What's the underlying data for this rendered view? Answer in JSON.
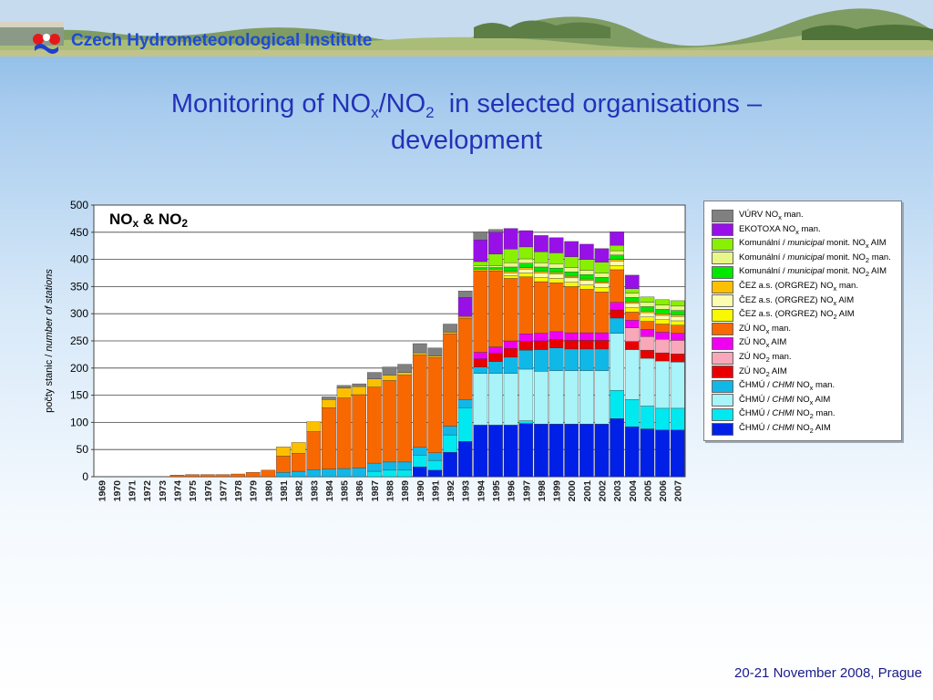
{
  "header": {
    "institute": "Czech Hydrometeorological Institute"
  },
  "slide": {
    "title_pre": "Monitoring of NO",
    "title_sub1": "x",
    "title_mid": "/NO",
    "title_sub2": "2",
    "title_post": "  in selected organisations –",
    "title_line2": "development"
  },
  "footer": {
    "text": "20-21 November 2008, Prague"
  },
  "chart_data": {
    "type": "bar",
    "stacked": true,
    "title": "NOx & NO2",
    "ylabel": "počty stanic / number of stations",
    "ylim": [
      0,
      500
    ],
    "yticks": [
      0,
      50,
      100,
      150,
      200,
      250,
      300,
      350,
      400,
      450,
      500
    ],
    "grid": true,
    "legend_position": "right",
    "categories": [
      "1969",
      "1970",
      "1971",
      "1972",
      "1973",
      "1974",
      "1975",
      "1976",
      "1977",
      "1978",
      "1979",
      "1980",
      "1981",
      "1982",
      "1983",
      "1984",
      "1985",
      "1986",
      "1987",
      "1988",
      "1989",
      "1990",
      "1991",
      "1992",
      "1993",
      "1994",
      "1995",
      "1996",
      "1997",
      "1998",
      "1999",
      "2000",
      "2001",
      "2002",
      "2003",
      "2004",
      "2005",
      "2006",
      "2007"
    ],
    "series": [
      {
        "name": "ČHMÚ / CHMI NO2 AIM",
        "color": "#0020e8",
        "values": [
          0,
          0,
          0,
          0,
          0,
          0,
          0,
          0,
          0,
          0,
          0,
          0,
          0,
          0,
          0,
          0,
          0,
          0,
          0,
          0,
          0,
          18,
          12,
          45,
          65,
          95,
          95,
          95,
          98,
          97,
          97,
          97,
          97,
          97,
          107,
          92,
          88,
          86,
          86
        ]
      },
      {
        "name": "ČHMÚ / CHMI NO2 man.",
        "color": "#00e8f0",
        "values": [
          0,
          0,
          0,
          0,
          0,
          0,
          0,
          0,
          0,
          0,
          0,
          0,
          0,
          0,
          0,
          0,
          0,
          0,
          10,
          12,
          12,
          22,
          18,
          32,
          62,
          0,
          0,
          0,
          5,
          0,
          0,
          0,
          0,
          0,
          52,
          50,
          42,
          40,
          40
        ]
      },
      {
        "name": "ČHMÚ / CHMI NOx AIM",
        "color": "#a8f4f8",
        "values": [
          0,
          0,
          0,
          0,
          0,
          0,
          0,
          0,
          0,
          0,
          0,
          0,
          0,
          0,
          0,
          0,
          0,
          0,
          0,
          0,
          0,
          0,
          0,
          0,
          0,
          95,
          95,
          95,
          95,
          97,
          98,
          98,
          98,
          98,
          105,
          92,
          88,
          87,
          85
        ]
      },
      {
        "name": "ČHMÚ / CHMI NOx man.",
        "color": "#10b8e8",
        "values": [
          0,
          0,
          0,
          0,
          0,
          0,
          0,
          0,
          0,
          0,
          0,
          0,
          8,
          10,
          13,
          14,
          15,
          16,
          15,
          15,
          15,
          14,
          14,
          16,
          15,
          12,
          22,
          30,
          35,
          40,
          42,
          40,
          40,
          40,
          28,
          0,
          0,
          0,
          0
        ]
      },
      {
        "name": "ZÚ NO2 AIM",
        "color": "#e80000",
        "values": [
          0,
          0,
          0,
          0,
          0,
          0,
          0,
          0,
          0,
          0,
          0,
          0,
          0,
          0,
          0,
          0,
          0,
          0,
          0,
          0,
          0,
          0,
          0,
          0,
          0,
          15,
          15,
          16,
          16,
          16,
          16,
          16,
          16,
          16,
          15,
          15,
          15,
          15,
          15
        ]
      },
      {
        "name": "ZÚ NO2 man.",
        "color": "#f8a8b8",
        "values": [
          0,
          0,
          0,
          0,
          0,
          0,
          0,
          0,
          0,
          0,
          0,
          0,
          0,
          0,
          0,
          0,
          0,
          0,
          0,
          0,
          0,
          0,
          0,
          0,
          0,
          0,
          0,
          0,
          0,
          0,
          0,
          0,
          0,
          0,
          0,
          25,
          25,
          25,
          25
        ]
      },
      {
        "name": "ZÚ NOx AIM",
        "color": "#f000f0",
        "values": [
          0,
          0,
          0,
          0,
          0,
          0,
          0,
          0,
          0,
          0,
          0,
          0,
          0,
          0,
          0,
          0,
          0,
          0,
          0,
          0,
          0,
          0,
          0,
          0,
          0,
          12,
          12,
          14,
          14,
          14,
          14,
          14,
          14,
          14,
          14,
          14,
          13,
          13,
          13
        ]
      },
      {
        "name": "ZÚ NOx man.",
        "color": "#f86800",
        "values": [
          0,
          0,
          0,
          0,
          0,
          3,
          4,
          4,
          4,
          5,
          8,
          12,
          30,
          33,
          70,
          113,
          130,
          135,
          140,
          150,
          160,
          170,
          175,
          170,
          150,
          150,
          140,
          115,
          105,
          95,
          90,
          85,
          80,
          75,
          60,
          15,
          15,
          15,
          15
        ]
      },
      {
        "name": "ČEZ a.s. (ORGREZ) NO2 AIM",
        "color": "#f8f800",
        "values": [
          0,
          0,
          0,
          0,
          0,
          0,
          0,
          0,
          0,
          0,
          0,
          0,
          0,
          0,
          0,
          0,
          0,
          0,
          0,
          0,
          0,
          0,
          0,
          0,
          0,
          0,
          0,
          5,
          7,
          8,
          8,
          8,
          8,
          8,
          8,
          8,
          8,
          8,
          8
        ]
      },
      {
        "name": "ČEZ a.s. (ORGREZ) NOx AIM",
        "color": "#fcfcb0",
        "values": [
          0,
          0,
          0,
          0,
          0,
          0,
          0,
          0,
          0,
          0,
          0,
          0,
          0,
          0,
          0,
          0,
          0,
          0,
          0,
          0,
          0,
          0,
          0,
          0,
          0,
          0,
          0,
          5,
          7,
          8,
          8,
          8,
          8,
          8,
          8,
          8,
          8,
          8,
          8
        ]
      },
      {
        "name": "ČEZ a.s. (ORGREZ) NOx man.",
        "color": "#fcc000",
        "values": [
          0,
          0,
          0,
          0,
          0,
          0,
          0,
          0,
          0,
          0,
          0,
          0,
          17,
          20,
          18,
          15,
          18,
          15,
          15,
          10,
          5,
          4,
          3,
          3,
          3,
          3,
          3,
          3,
          3,
          3,
          3,
          3,
          3,
          3,
          3,
          3,
          3,
          3,
          3
        ]
      },
      {
        "name": "Komunální / municipal monit. NO2 AIM",
        "color": "#00e800",
        "values": [
          0,
          0,
          0,
          0,
          0,
          0,
          0,
          0,
          0,
          0,
          0,
          0,
          0,
          0,
          0,
          0,
          0,
          0,
          0,
          0,
          0,
          0,
          0,
          0,
          0,
          3,
          3,
          8,
          8,
          8,
          8,
          8,
          8,
          8,
          8,
          8,
          8,
          8,
          8
        ]
      },
      {
        "name": "Komunální / municipal monit. NO2 man.",
        "color": "#e8f888",
        "values": [
          0,
          0,
          0,
          0,
          0,
          0,
          0,
          0,
          0,
          0,
          0,
          0,
          0,
          0,
          0,
          0,
          0,
          0,
          0,
          0,
          0,
          0,
          0,
          0,
          0,
          3,
          3,
          8,
          8,
          8,
          8,
          8,
          8,
          8,
          8,
          8,
          8,
          8,
          8
        ]
      },
      {
        "name": "Komunální / municipal monit. NOx AIM",
        "color": "#88f000",
        "values": [
          0,
          0,
          0,
          0,
          0,
          0,
          0,
          0,
          0,
          0,
          0,
          0,
          0,
          0,
          0,
          0,
          0,
          0,
          0,
          0,
          0,
          0,
          0,
          0,
          0,
          8,
          22,
          25,
          22,
          20,
          20,
          20,
          20,
          20,
          10,
          8,
          10,
          10,
          10
        ]
      },
      {
        "name": "EKOTOXA NOx man.",
        "color": "#9810e8",
        "values": [
          0,
          0,
          0,
          0,
          0,
          0,
          0,
          0,
          0,
          0,
          0,
          0,
          0,
          0,
          0,
          0,
          0,
          0,
          0,
          0,
          0,
          0,
          0,
          0,
          35,
          40,
          40,
          38,
          30,
          30,
          28,
          28,
          28,
          25,
          25,
          25,
          0,
          0,
          0
        ]
      },
      {
        "name": "VÚRV NOx man.",
        "color": "#808080",
        "values": [
          0,
          0,
          0,
          0,
          0,
          0,
          0,
          0,
          0,
          0,
          0,
          0,
          0,
          0,
          0,
          5,
          5,
          5,
          12,
          15,
          15,
          17,
          15,
          15,
          12,
          15,
          5,
          0,
          0,
          0,
          0,
          0,
          0,
          0,
          0,
          0,
          0,
          0,
          0
        ]
      }
    ]
  }
}
